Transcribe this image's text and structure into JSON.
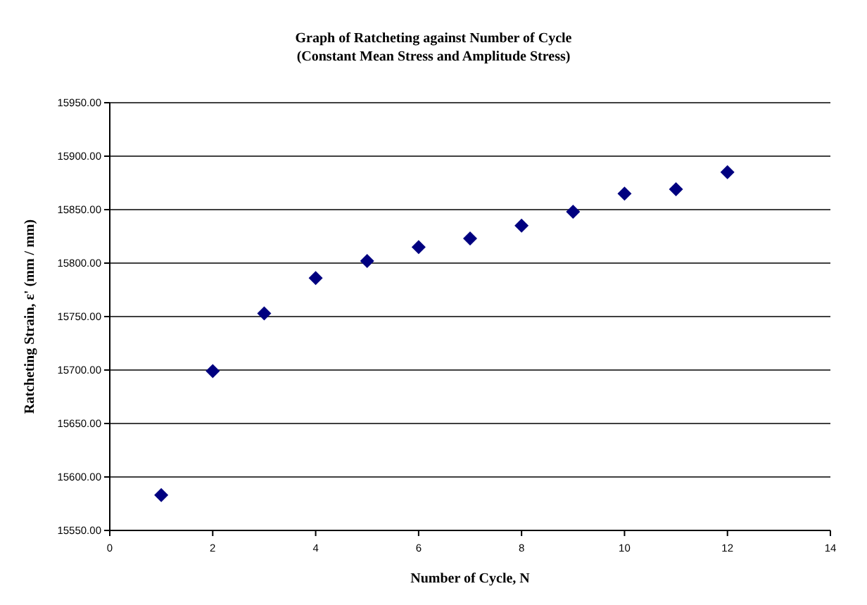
{
  "chart_data": {
    "type": "scatter",
    "title": "Graph of Ratcheting against Number of Cycle",
    "subtitle": "(Constant Mean Stress and Amplitude Stress)",
    "xlabel": "Number of Cycle, N",
    "ylabel": "Ratcheting Strain, ε' (mm / mm)",
    "x": [
      1,
      2,
      3,
      4,
      5,
      6,
      7,
      8,
      9,
      10,
      11,
      12
    ],
    "series": [
      {
        "color": "#000080",
        "values": [
          15583,
          15699,
          15753,
          15786,
          15802,
          15815,
          15823,
          15835,
          15848,
          15865,
          15869,
          15885
        ]
      }
    ],
    "xlim": [
      0,
      14
    ],
    "xticks": [
      0,
      2,
      4,
      6,
      8,
      10,
      12,
      14
    ],
    "ylim": [
      15550,
      15950
    ],
    "yticks": [
      {
        "value": 15550,
        "label": "15550.00"
      },
      {
        "value": 15600,
        "label": "15600.00"
      },
      {
        "value": 15650,
        "label": "15650.00"
      },
      {
        "value": 15700,
        "label": "15700.00"
      },
      {
        "value": 15750,
        "label": "15750.00"
      },
      {
        "value": 15800,
        "label": "15800.00"
      },
      {
        "value": 15850,
        "label": "15850.00"
      },
      {
        "value": 15900,
        "label": "15900.00"
      },
      {
        "value": 15950,
        "label": "15950.00"
      }
    ],
    "grid": "y",
    "marker": "diamond"
  }
}
